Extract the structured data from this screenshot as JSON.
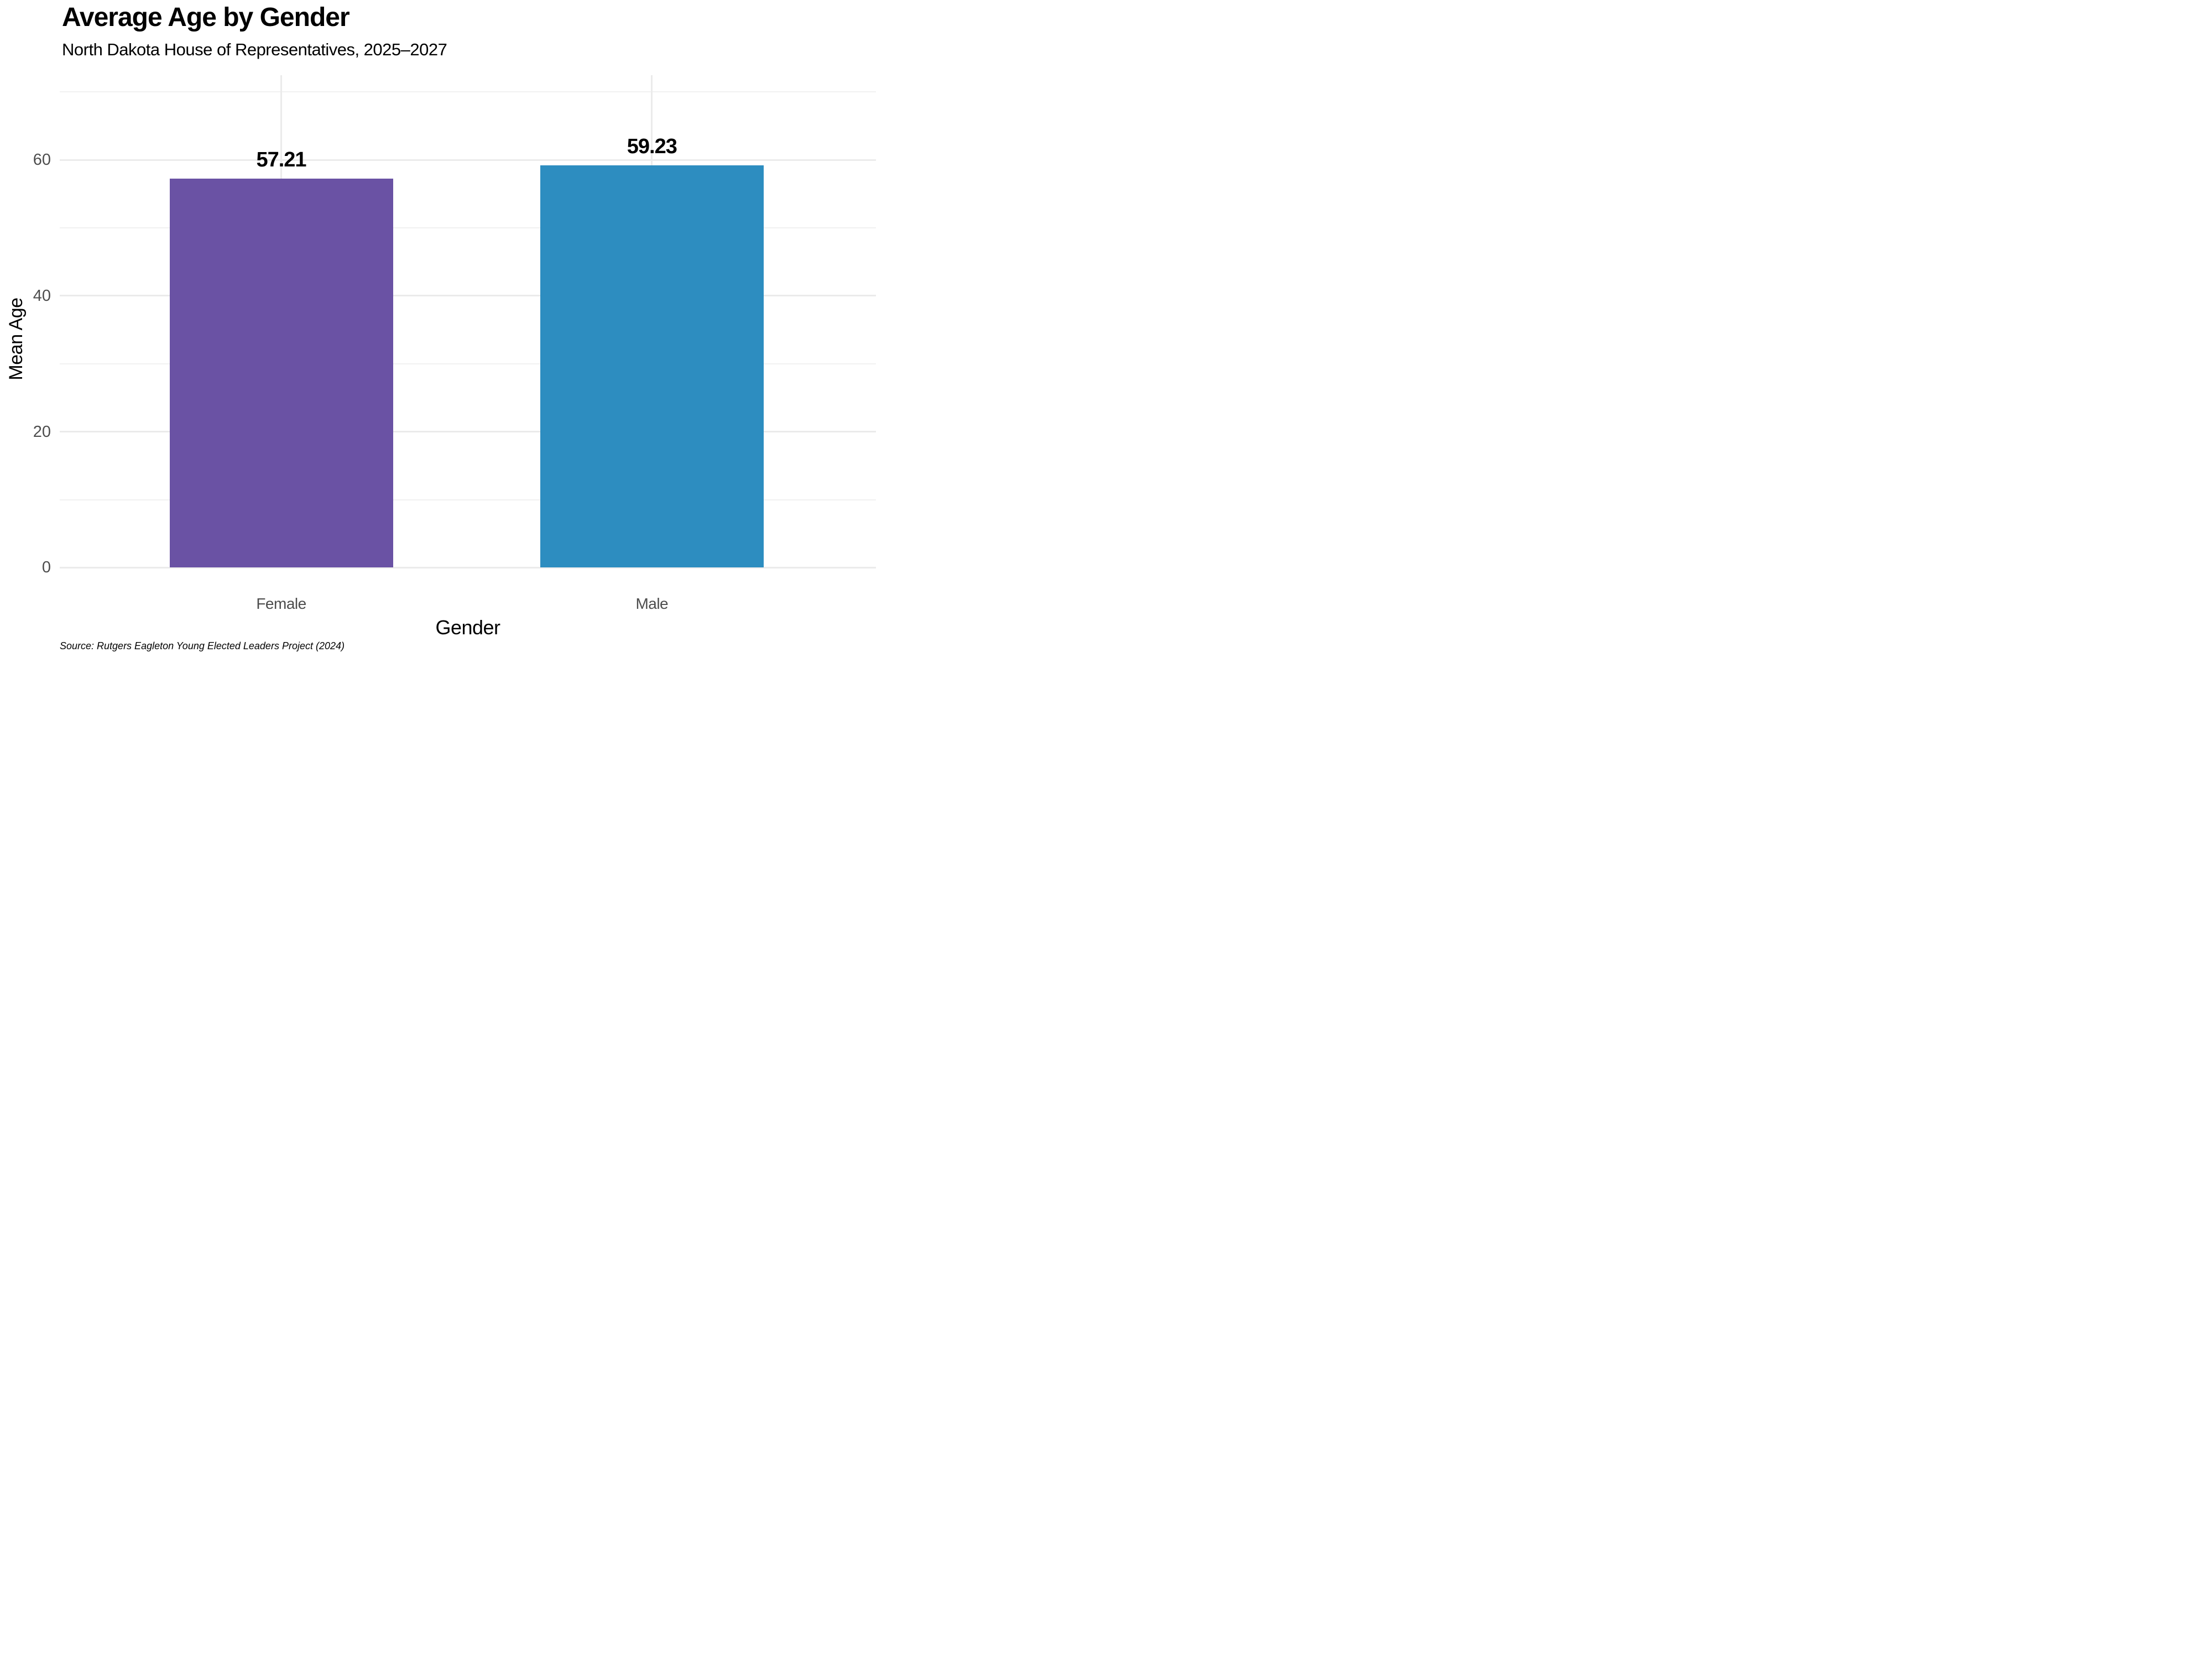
{
  "chart_data": {
    "type": "bar",
    "title": "Average Age by Gender",
    "subtitle": "North Dakota House of Representatives, 2025–2027",
    "xlabel": "Gender",
    "ylabel": "Mean Age",
    "categories": [
      "Female",
      "Male"
    ],
    "values": [
      57.21,
      59.23
    ],
    "value_labels": [
      "57.21",
      "59.23"
    ],
    "bar_colors": [
      "#6A52A4",
      "#2D8DC0"
    ],
    "yticks": [
      0,
      20,
      40,
      60
    ],
    "yminor_ticks": [
      10,
      30,
      50,
      70
    ],
    "ylim": [
      0,
      72.4
    ],
    "grid": "horizontal major+minor, vertical major at category centers",
    "legend": "none",
    "source_note": "Source: Rutgers Eagleton Young Elected Leaders Project (2024)",
    "colors": {
      "gridline": "#EBEBEB",
      "axis_text": "#4D4D4D",
      "text": "#000000",
      "background": "#FFFFFF"
    }
  }
}
